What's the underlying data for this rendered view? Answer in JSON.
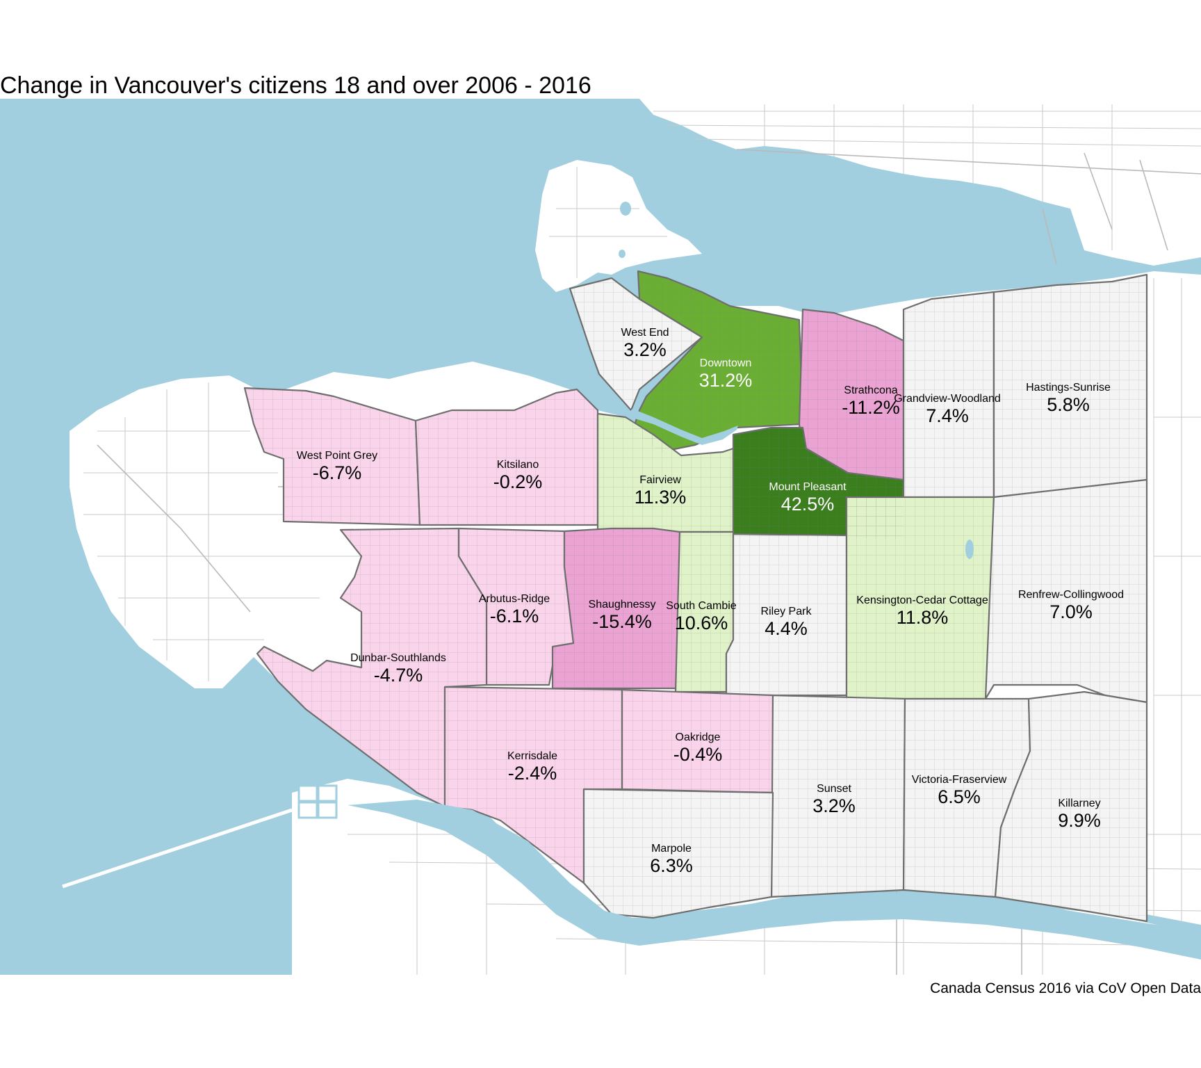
{
  "title": "Change in Vancouver's citizens 18 and over 2006 - 2016",
  "caption": "Canada Census 2016 via CoV Open Data",
  "colors": {
    "water": "#a2cfdf",
    "land": "#ffffff",
    "street": "#c9c9c9",
    "boundary": "#6e6e6e",
    "decline_strong": "#eaa3d3",
    "decline_mid": "#f4b9de",
    "decline_light": "#fad4eb",
    "neutral": "#f4f4f4",
    "growth_light": "#e0f2c8",
    "growth_mid": "#6aaf34",
    "growth_strong": "#3b7e1e"
  },
  "neighbourhoods": [
    {
      "name": "West End",
      "value": "3.2%",
      "fill": "#f4f4f4",
      "text_color": "#000000"
    },
    {
      "name": "Downtown",
      "value": "31.2%",
      "fill": "#6aaf34",
      "text_color": "#ffffff"
    },
    {
      "name": "Strathcona",
      "value": "-11.2%",
      "fill": "#eaa3d3",
      "text_color": "#000000"
    },
    {
      "name": "Grandview-Woodland",
      "value": "7.4%",
      "fill": "#f4f4f4",
      "text_color": "#000000"
    },
    {
      "name": "Hastings-Sunrise",
      "value": "5.8%",
      "fill": "#f4f4f4",
      "text_color": "#000000"
    },
    {
      "name": "West Point Grey",
      "value": "-6.7%",
      "fill": "#fad4eb",
      "text_color": "#000000"
    },
    {
      "name": "Kitsilano",
      "value": "-0.2%",
      "fill": "#fad4eb",
      "text_color": "#000000"
    },
    {
      "name": "Fairview",
      "value": "11.3%",
      "fill": "#e0f2c8",
      "text_color": "#000000"
    },
    {
      "name": "Mount Pleasant",
      "value": "42.5%",
      "fill": "#3b7e1e",
      "text_color": "#ffffff"
    },
    {
      "name": "Arbutus-Ridge",
      "value": "-6.1%",
      "fill": "#fad4eb",
      "text_color": "#000000"
    },
    {
      "name": "Shaughnessy",
      "value": "-15.4%",
      "fill": "#eaa3d3",
      "text_color": "#000000"
    },
    {
      "name": "South Cambie",
      "value": "10.6%",
      "fill": "#e0f2c8",
      "text_color": "#000000"
    },
    {
      "name": "Riley Park",
      "value": "4.4%",
      "fill": "#f4f4f4",
      "text_color": "#000000"
    },
    {
      "name": "Kensington-Cedar Cottage",
      "value": "11.8%",
      "fill": "#e0f2c8",
      "text_color": "#000000"
    },
    {
      "name": "Renfrew-Collingwood",
      "value": "7.0%",
      "fill": "#f4f4f4",
      "text_color": "#000000"
    },
    {
      "name": "Dunbar-Southlands",
      "value": "-4.7%",
      "fill": "#fad4eb",
      "text_color": "#000000"
    },
    {
      "name": "Kerrisdale",
      "value": "-2.4%",
      "fill": "#fad4eb",
      "text_color": "#000000"
    },
    {
      "name": "Oakridge",
      "value": "-0.4%",
      "fill": "#fad4eb",
      "text_color": "#000000"
    },
    {
      "name": "Sunset",
      "value": "3.2%",
      "fill": "#f4f4f4",
      "text_color": "#000000"
    },
    {
      "name": "Victoria-Fraserview",
      "value": "6.5%",
      "fill": "#f4f4f4",
      "text_color": "#000000"
    },
    {
      "name": "Killarney",
      "value": "9.9%",
      "fill": "#f4f4f4",
      "text_color": "#000000"
    },
    {
      "name": "Marpole",
      "value": "6.3%",
      "fill": "#f4f4f4",
      "text_color": "#000000"
    }
  ]
}
